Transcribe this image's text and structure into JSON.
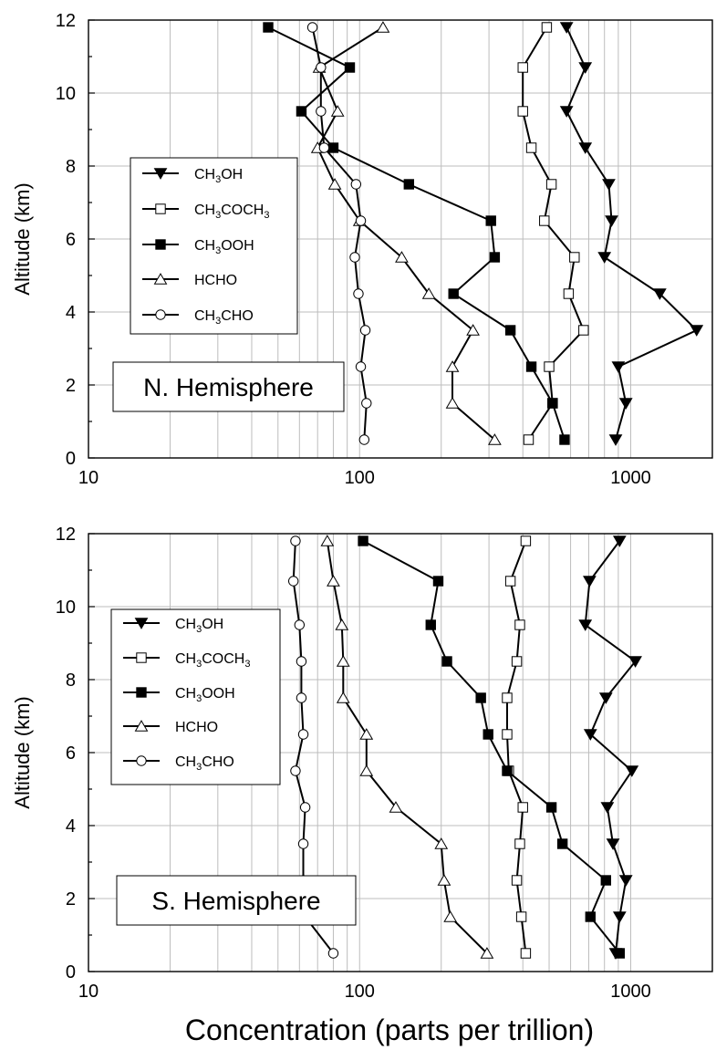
{
  "figure": {
    "xlabel": "Concentration (parts per trillion)"
  },
  "chart_data": [
    {
      "type": "line",
      "title": "N. Hemisphere",
      "ylabel": "Altitude (km)",
      "xscale": "log",
      "xlim": [
        10,
        2000
      ],
      "ylim": [
        0,
        12
      ],
      "x_ticks": [
        "10",
        "100",
        "1000"
      ],
      "y_ticks": [
        "0",
        "2",
        "4",
        "6",
        "8",
        "10",
        "12"
      ],
      "grid": true,
      "legend_position": "left-middle",
      "series": [
        {
          "name": "CH3OH",
          "legend_parts": [
            [
              "CH",
              ""
            ],
            [
              "3",
              "sub"
            ],
            [
              "OH",
              ""
            ]
          ],
          "marker": "triangle-down-filled",
          "points": [
            [
              580,
              11.8
            ],
            [
              680,
              10.7
            ],
            [
              580,
              9.5
            ],
            [
              680,
              8.5
            ],
            [
              830,
              7.5
            ],
            [
              850,
              6.5
            ],
            [
              800,
              5.5
            ],
            [
              1280,
              4.5
            ],
            [
              1750,
              3.5
            ],
            [
              900,
              2.5
            ],
            [
              960,
              1.5
            ],
            [
              880,
              0.5
            ]
          ]
        },
        {
          "name": "CH3COCH3",
          "legend_parts": [
            [
              "CH",
              ""
            ],
            [
              "3",
              "sub"
            ],
            [
              "COCH",
              ""
            ],
            [
              "3",
              "sub"
            ]
          ],
          "marker": "square-open",
          "points": [
            [
              490,
              11.8
            ],
            [
              400,
              10.7
            ],
            [
              400,
              9.5
            ],
            [
              430,
              8.5
            ],
            [
              510,
              7.5
            ],
            [
              480,
              6.5
            ],
            [
              620,
              5.5
            ],
            [
              590,
              4.5
            ],
            [
              670,
              3.5
            ],
            [
              500,
              2.5
            ],
            [
              515,
              1.5
            ],
            [
              420,
              0.5
            ]
          ]
        },
        {
          "name": "CH3OOH",
          "legend_parts": [
            [
              "CH",
              ""
            ],
            [
              "3",
              "sub"
            ],
            [
              "OOH",
              ""
            ]
          ],
          "marker": "square-filled",
          "points": [
            [
              46,
              11.8
            ],
            [
              92,
              10.7
            ],
            [
              61,
              9.5
            ],
            [
              80,
              8.5
            ],
            [
              152,
              7.5
            ],
            [
              305,
              6.5
            ],
            [
              315,
              5.5
            ],
            [
              222,
              4.5
            ],
            [
              360,
              3.5
            ],
            [
              430,
              2.5
            ],
            [
              515,
              1.5
            ],
            [
              570,
              0.5
            ]
          ]
        },
        {
          "name": "HCHO",
          "legend_parts": [
            [
              "HCHO",
              ""
            ]
          ],
          "marker": "triangle-up-open",
          "points": [
            [
              122,
              11.8
            ],
            [
              71,
              10.7
            ],
            [
              83,
              9.5
            ],
            [
              70,
              8.5
            ],
            [
              81,
              7.5
            ],
            [
              100,
              6.5
            ],
            [
              143,
              5.5
            ],
            [
              180,
              4.5
            ],
            [
              262,
              3.5
            ],
            [
              220,
              2.5
            ],
            [
              220,
              1.5
            ],
            [
              315,
              0.5
            ]
          ]
        },
        {
          "name": "CH3CHO",
          "legend_parts": [
            [
              "CH",
              ""
            ],
            [
              "3",
              "sub"
            ],
            [
              "CHO",
              ""
            ]
          ],
          "marker": "circle-open",
          "points": [
            [
              67,
              11.8
            ],
            [
              72,
              10.7
            ],
            [
              72,
              9.5
            ],
            [
              74,
              8.5
            ],
            [
              97,
              7.5
            ],
            [
              101,
              6.5
            ],
            [
              96,
              5.5
            ],
            [
              99,
              4.5
            ],
            [
              105,
              3.5
            ],
            [
              101,
              2.5
            ],
            [
              106,
              1.5
            ],
            [
              104,
              0.5
            ]
          ]
        }
      ]
    },
    {
      "type": "line",
      "title": "S. Hemisphere",
      "ylabel": "Altitude (km)",
      "xscale": "log",
      "xlim": [
        10,
        2000
      ],
      "ylim": [
        0,
        12
      ],
      "x_ticks": [
        "10",
        "100",
        "1000"
      ],
      "y_ticks": [
        "0",
        "2",
        "4",
        "6",
        "8",
        "10",
        "12"
      ],
      "grid": true,
      "legend_position": "left-middle",
      "series": [
        {
          "name": "CH3OH",
          "legend_parts": [
            [
              "CH",
              ""
            ],
            [
              "3",
              "sub"
            ],
            [
              "OH",
              ""
            ]
          ],
          "marker": "triangle-down-filled",
          "points": [
            [
              910,
              11.8
            ],
            [
              705,
              10.7
            ],
            [
              680,
              9.5
            ],
            [
              1040,
              8.5
            ],
            [
              810,
              7.5
            ],
            [
              710,
              6.5
            ],
            [
              1010,
              5.5
            ],
            [
              820,
              4.5
            ],
            [
              860,
              3.5
            ],
            [
              960,
              2.5
            ],
            [
              910,
              1.5
            ],
            [
              880,
              0.5
            ]
          ]
        },
        {
          "name": "CH3COCH3",
          "legend_parts": [
            [
              "CH",
              ""
            ],
            [
              "3",
              "sub"
            ],
            [
              "COCH",
              ""
            ],
            [
              "3",
              "sub"
            ]
          ],
          "marker": "square-open",
          "points": [
            [
              410,
              11.8
            ],
            [
              360,
              10.7
            ],
            [
              390,
              9.5
            ],
            [
              380,
              8.5
            ],
            [
              350,
              7.5
            ],
            [
              350,
              6.5
            ],
            [
              355,
              5.5
            ],
            [
              400,
              4.5
            ],
            [
              390,
              3.5
            ],
            [
              380,
              2.5
            ],
            [
              395,
              1.5
            ],
            [
              410,
              0.5
            ]
          ]
        },
        {
          "name": "CH3OOH",
          "legend_parts": [
            [
              "CH",
              ""
            ],
            [
              "3",
              "sub"
            ],
            [
              "OOH",
              ""
            ]
          ],
          "marker": "square-filled",
          "points": [
            [
              103,
              11.8
            ],
            [
              195,
              10.7
            ],
            [
              183,
              9.5
            ],
            [
              210,
              8.5
            ],
            [
              280,
              7.5
            ],
            [
              298,
              6.5
            ],
            [
              350,
              5.5
            ],
            [
              510,
              4.5
            ],
            [
              560,
              3.5
            ],
            [
              810,
              2.5
            ],
            [
              710,
              1.5
            ],
            [
              910,
              0.5
            ]
          ]
        },
        {
          "name": "HCHO",
          "legend_parts": [
            [
              "HCHO",
              ""
            ]
          ],
          "marker": "triangle-up-open",
          "points": [
            [
              76,
              11.8
            ],
            [
              80,
              10.7
            ],
            [
              86,
              9.5
            ],
            [
              87,
              8.5
            ],
            [
              87,
              7.5
            ],
            [
              106,
              6.5
            ],
            [
              106,
              5.5
            ],
            [
              136,
              4.5
            ],
            [
              200,
              3.5
            ],
            [
              205,
              2.5
            ],
            [
              216,
              1.5
            ],
            [
              295,
              0.5
            ]
          ]
        },
        {
          "name": "CH3CHO",
          "legend_parts": [
            [
              "CH",
              ""
            ],
            [
              "3",
              "sub"
            ],
            [
              "CHO",
              ""
            ]
          ],
          "marker": "circle-open",
          "points": [
            [
              58,
              11.8
            ],
            [
              57,
              10.7
            ],
            [
              60,
              9.5
            ],
            [
              61,
              8.5
            ],
            [
              61,
              7.5
            ],
            [
              62,
              6.5
            ],
            [
              58,
              5.5
            ],
            [
              63,
              4.5
            ],
            [
              62,
              3.5
            ],
            [
              62,
              2.5
            ],
            [
              63,
              1.5
            ],
            [
              80,
              0.5
            ]
          ]
        }
      ]
    }
  ]
}
